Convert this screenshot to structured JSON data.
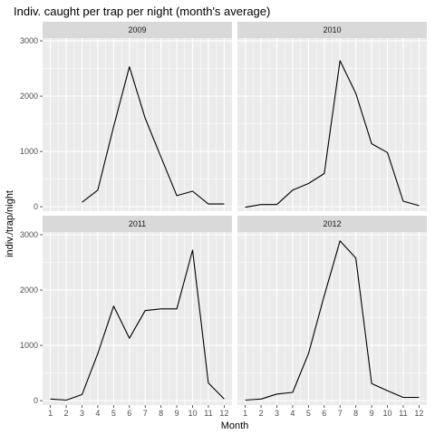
{
  "chart_data": {
    "type": "line",
    "title": "Indiv. caught per trap per night (month's average)",
    "xlabel": "Month",
    "ylabel": "indiv./trap/night",
    "x_ticks": [
      1,
      2,
      3,
      4,
      5,
      6,
      7,
      8,
      9,
      10,
      11,
      12
    ],
    "xlim": [
      1,
      12
    ],
    "y_ticks": [
      0,
      1000,
      2000,
      3000
    ],
    "ylim": [
      -80,
      3050
    ],
    "grid": true,
    "facet_layout": "2x2",
    "line_color": "#000000",
    "panel_background": "#ebebeb",
    "strip_background": "#d9d9d9",
    "grid_color": "#ffffff",
    "panels": [
      {
        "label": "2009",
        "x": [
          3,
          4,
          5,
          6,
          7,
          8,
          9,
          10,
          11,
          12
        ],
        "y": [
          80,
          300,
          1450,
          2530,
          1600,
          900,
          200,
          280,
          50,
          50
        ]
      },
      {
        "label": "2010",
        "x": [
          1,
          2,
          3,
          4,
          5,
          6,
          7,
          8,
          9,
          10,
          11,
          12
        ],
        "y": [
          -10,
          40,
          40,
          300,
          420,
          600,
          2640,
          2050,
          1140,
          980,
          100,
          20
        ]
      },
      {
        "label": "2011",
        "x": [
          1,
          2,
          3,
          4,
          5,
          6,
          7,
          8,
          9,
          10,
          11,
          12
        ],
        "y": [
          30,
          10,
          110,
          850,
          1710,
          1130,
          1630,
          1660,
          1660,
          2720,
          320,
          30
        ]
      },
      {
        "label": "2012",
        "x": [
          1,
          2,
          3,
          4,
          5,
          6,
          7,
          8,
          9,
          10,
          11,
          12
        ],
        "y": [
          10,
          30,
          120,
          150,
          850,
          1900,
          2890,
          2580,
          310,
          180,
          60,
          60
        ]
      }
    ]
  }
}
